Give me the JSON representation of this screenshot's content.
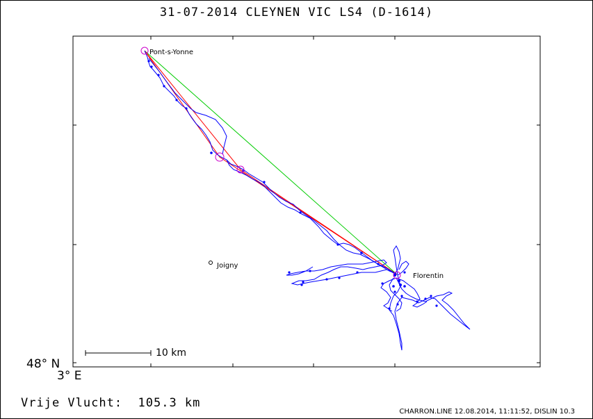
{
  "title": "31-07-2014    CLEYNEN VIC    LS4 (D-1614)",
  "lat_label": "48° N",
  "lon_label": "3° E",
  "scale_label": "10 km",
  "distance_label": "Vrije Vlucht:  105.3 km",
  "credit": "CHARRON.LINE 12.08.2014, 11:11:52, DISLIN 10.3",
  "places": {
    "pont_sur_yonne": "Pont-s-Yonne",
    "florentin": "Florentin",
    "joigny": "Joigny"
  },
  "colors": {
    "track": "#0000ff",
    "task": "#ff0000",
    "free_flight": "#00cc00",
    "turnpoint": "#cc00cc"
  }
}
